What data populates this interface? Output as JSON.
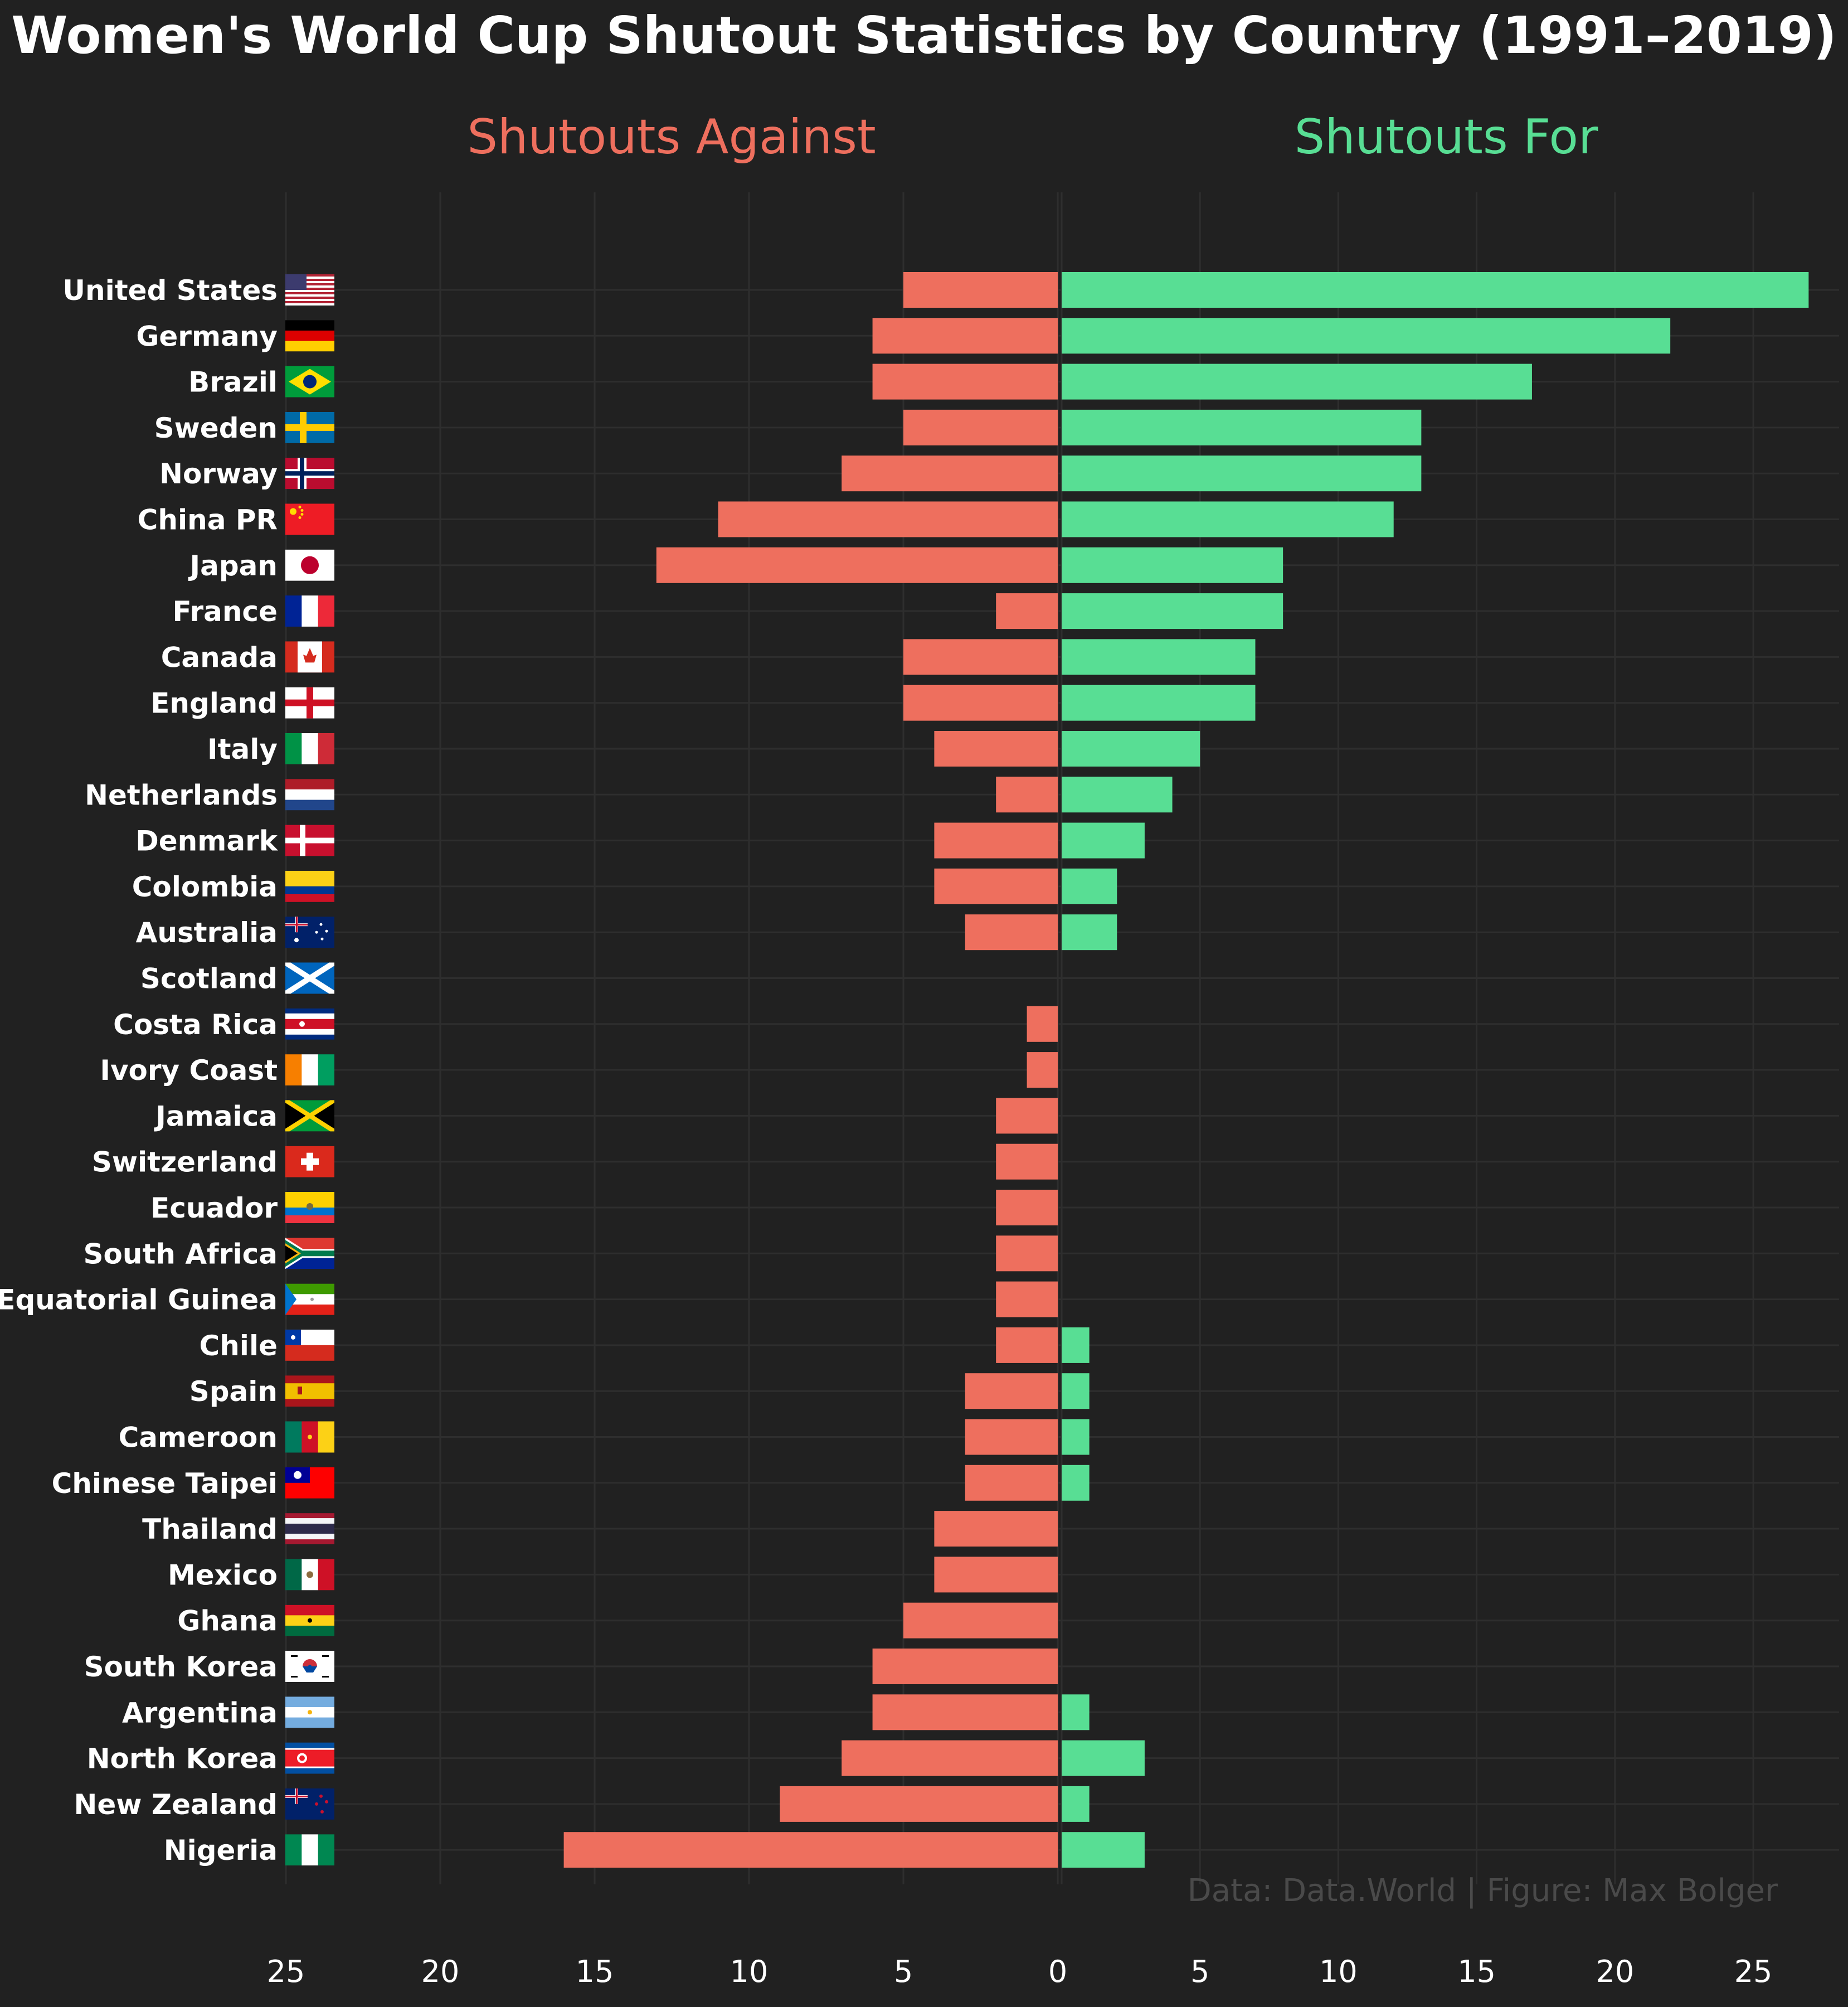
{
  "title": "Women's World Cup Shutout Statistics by Country (1991–2019)",
  "caption": "Data: Data.World | Figure: Max Bolger",
  "panels": {
    "against": {
      "title": "Shutouts Against",
      "color": "#EE6F5E"
    },
    "for": {
      "title": "Shutouts For",
      "color": "#58DE94"
    }
  },
  "chart_data": {
    "type": "bar",
    "orientation": "horizontal-diverging",
    "categories": [
      "United States",
      "Germany",
      "Brazil",
      "Sweden",
      "Norway",
      "China PR",
      "Japan",
      "France",
      "Canada",
      "England",
      "Italy",
      "Netherlands",
      "Denmark",
      "Colombia",
      "Australia",
      "Scotland",
      "Costa Rica",
      "Ivory Coast",
      "Jamaica",
      "Switzerland",
      "Ecuador",
      "South Africa",
      "Equatorial Guinea",
      "Chile",
      "Spain",
      "Cameroon",
      "Chinese Taipei",
      "Thailand",
      "Mexico",
      "Ghana",
      "South Korea",
      "Argentina",
      "North Korea",
      "New Zealand",
      "Nigeria"
    ],
    "series": [
      {
        "name": "Shutouts Against",
        "values": [
          5,
          6,
          6,
          5,
          7,
          11,
          13,
          2,
          5,
          5,
          4,
          2,
          4,
          4,
          3,
          0,
          1,
          1,
          2,
          2,
          2,
          2,
          2,
          2,
          3,
          3,
          3,
          4,
          4,
          5,
          6,
          6,
          7,
          9,
          16
        ]
      },
      {
        "name": "Shutouts For",
        "values": [
          27,
          22,
          17,
          13,
          13,
          12,
          8,
          8,
          7,
          7,
          5,
          4,
          3,
          2,
          2,
          0,
          0,
          0,
          0,
          0,
          0,
          0,
          0,
          1,
          1,
          1,
          1,
          0,
          0,
          0,
          0,
          1,
          3,
          1,
          3
        ]
      }
    ],
    "left_axis": {
      "ticks": [
        "25",
        "20",
        "15",
        "10",
        "5",
        "0"
      ],
      "range": [
        0,
        25
      ]
    },
    "right_axis": {
      "ticks": [
        "0",
        "5",
        "10",
        "15",
        "20",
        "25"
      ],
      "range": [
        0,
        28
      ]
    },
    "grid": true
  }
}
